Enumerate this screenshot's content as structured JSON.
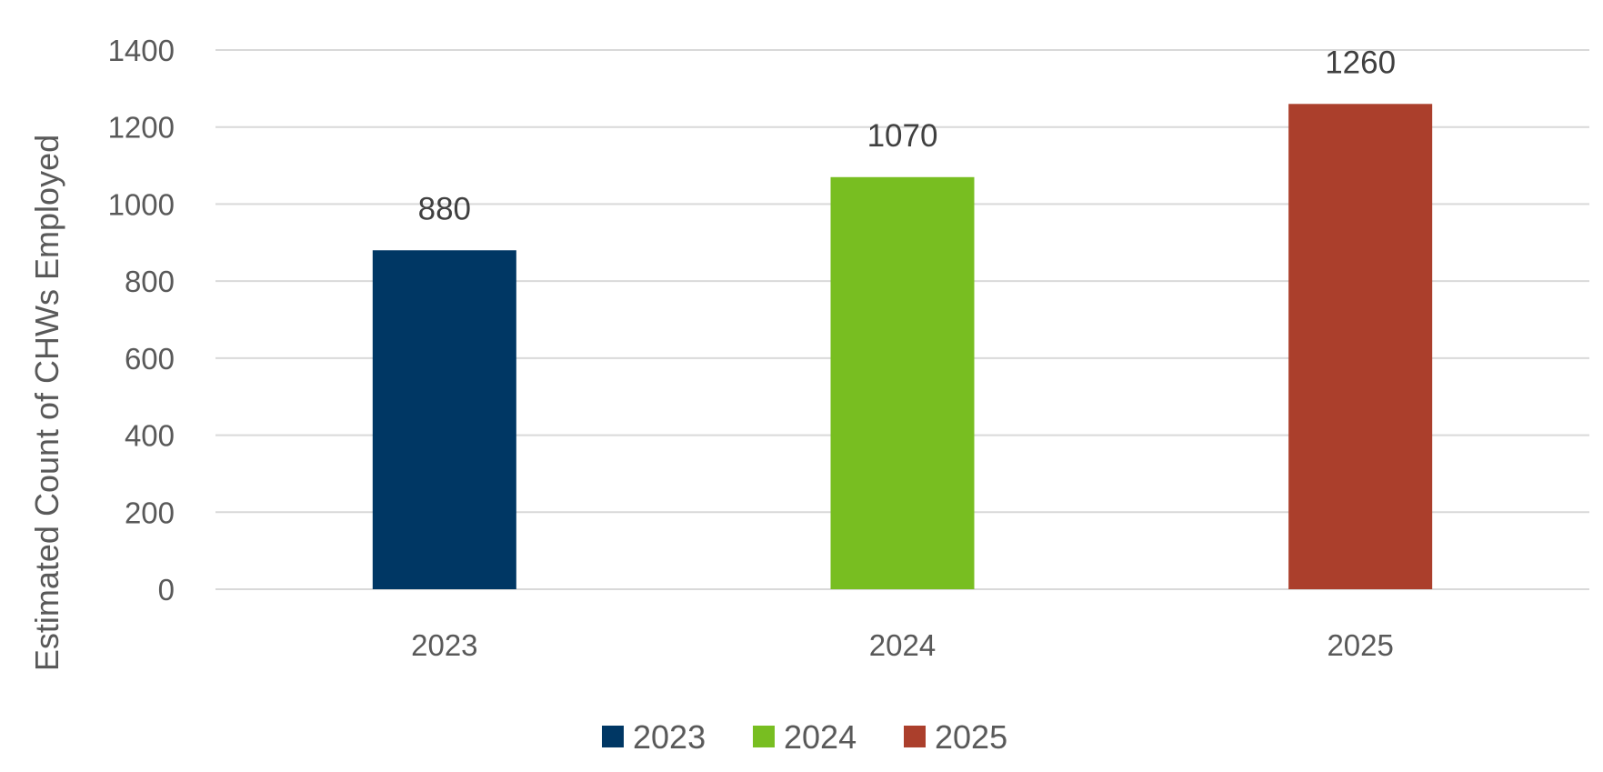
{
  "chart_data": {
    "type": "bar",
    "categories": [
      "2023",
      "2024",
      "2025"
    ],
    "values": [
      880,
      1070,
      1260
    ],
    "data_labels": [
      "880",
      "1070",
      "1260"
    ],
    "colors": [
      "#003764",
      "#78be21",
      "#ab3f2c"
    ],
    "title": "",
    "xlabel": "",
    "ylabel": "Estimated Count of CHWs Employed",
    "ylim": [
      0,
      1400
    ],
    "yticks": [
      0,
      200,
      400,
      600,
      800,
      1000,
      1200,
      1400
    ],
    "grid": true,
    "legend": {
      "placement": "bottom",
      "entries": [
        "2023",
        "2024",
        "2025"
      ]
    }
  }
}
